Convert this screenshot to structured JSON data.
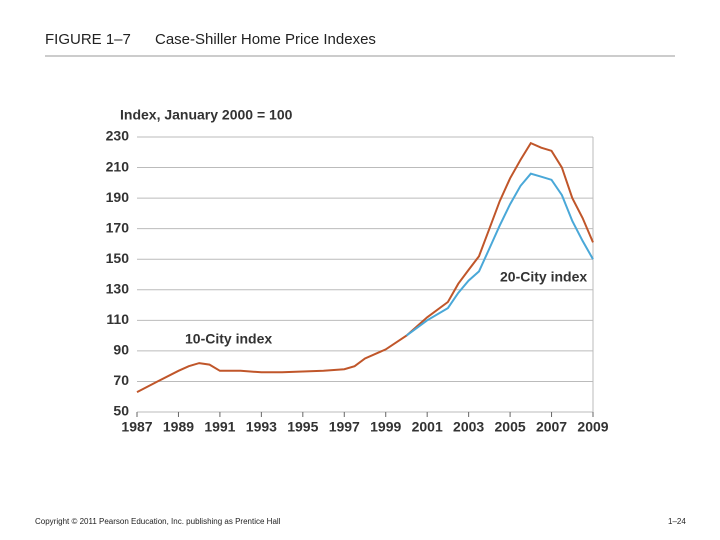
{
  "slide": {
    "figure": "FIGURE 1–7",
    "footer": "Copyright © 2011 Pearson Education, Inc. publishing as Prentice Hall",
    "page": "1–24"
  },
  "chart_data": {
    "type": "line",
    "title": "Case-Shiller Home Price Indexes",
    "ylabel": "Index, January 2000 = 100",
    "x": [
      1987,
      1988,
      1989,
      1989.5,
      1990,
      1990.5,
      1991,
      1992,
      1993,
      1994,
      1995,
      1996,
      1997,
      1997.5,
      1998,
      1999,
      2000,
      2001,
      2002,
      2002.5,
      2003,
      2003.5,
      2004,
      2004.5,
      2005,
      2005.5,
      2006,
      2006.5,
      2007,
      2007.5,
      2008,
      2008.5,
      2009
    ],
    "series": [
      {
        "name": "10-City index",
        "color": "#c0562a",
        "values": [
          63,
          70,
          77,
          80,
          82,
          81,
          77,
          77,
          76,
          76,
          76.5,
          77,
          78,
          80,
          85,
          91,
          100,
          112,
          122,
          134,
          143,
          152,
          170,
          188,
          203,
          215,
          226,
          223,
          221,
          210,
          190,
          177,
          161
        ]
      },
      {
        "name": "20-City index",
        "color": "#4aa8d8",
        "values": [
          null,
          null,
          null,
          null,
          null,
          null,
          null,
          null,
          null,
          null,
          null,
          null,
          null,
          null,
          null,
          null,
          100,
          110,
          118,
          128,
          136,
          142,
          157,
          172,
          186,
          198,
          206,
          204,
          202,
          192,
          175,
          162,
          150
        ]
      }
    ],
    "xlim": [
      1987,
      2009
    ],
    "xticks": [
      1987,
      1989,
      1991,
      1993,
      1995,
      1997,
      1999,
      2001,
      2003,
      2005,
      2007,
      2009
    ],
    "ylim": [
      50,
      230
    ],
    "yticks": [
      50,
      70,
      90,
      110,
      130,
      150,
      170,
      190,
      210,
      230
    ],
    "grid": true
  }
}
